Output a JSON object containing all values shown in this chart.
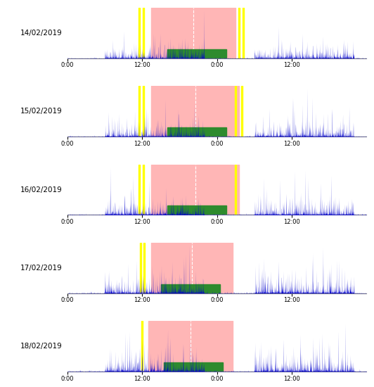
{
  "dates": [
    "14/02/2019",
    "15/02/2019",
    "16/02/2019",
    "17/02/2019",
    "18/02/2019"
  ],
  "total_hours": 48,
  "blue_color": "#0000cc",
  "yellow_color": "#ffff00",
  "green_color": "#2e8b2e",
  "pink_color": "#ffb6b6",
  "xtick_labels": [
    "0:00",
    "12:00",
    "0:00",
    "12:00"
  ],
  "xtick_positions": [
    0,
    12,
    24,
    36
  ],
  "pink_start": [
    13.5,
    13.5,
    13.5,
    13.5,
    13.0
  ],
  "pink_end": [
    27.0,
    27.5,
    27.5,
    26.5,
    26.5
  ],
  "green_start": [
    16.0,
    16.0,
    16.0,
    15.0,
    15.5
  ],
  "green_end": [
    25.5,
    25.5,
    25.5,
    24.5,
    25.0
  ],
  "yellow_positions_per_day": [
    [
      11.5,
      12.2,
      27.5,
      28.2
    ],
    [
      11.5,
      12.2,
      27.0,
      28.0
    ],
    [
      11.5,
      12.2,
      27.0
    ],
    [
      11.8,
      12.3
    ],
    [
      12.0
    ]
  ],
  "noise_seed": [
    42,
    43,
    44,
    45,
    46
  ]
}
